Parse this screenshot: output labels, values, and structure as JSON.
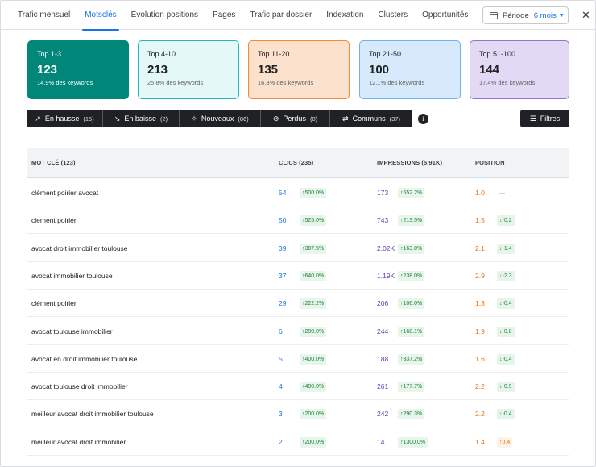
{
  "tabs": [
    {
      "label": "Trafic mensuel",
      "active": false
    },
    {
      "label": "Motsclés",
      "active": true
    },
    {
      "label": "Évolution positions",
      "active": false
    },
    {
      "label": "Pages",
      "active": false
    },
    {
      "label": "Trafic par dossier",
      "active": false
    },
    {
      "label": "Indexation",
      "active": false
    },
    {
      "label": "Clusters",
      "active": false
    },
    {
      "label": "Opportunités",
      "active": false
    }
  ],
  "period": {
    "label": "Période",
    "value": "6 mois"
  },
  "cards": [
    {
      "range": "Top 1-3",
      "count": "123",
      "pct": "14.9% des keywords"
    },
    {
      "range": "Top 4-10",
      "count": "213",
      "pct": "25.8% des keywords"
    },
    {
      "range": "Top 11-20",
      "count": "135",
      "pct": "16.3% des keywords"
    },
    {
      "range": "Top 21-50",
      "count": "100",
      "pct": "12.1% des keywords"
    },
    {
      "range": "Top 51-100",
      "count": "144",
      "pct": "17.4% des keywords"
    }
  ],
  "filters": [
    {
      "label": "En hausse",
      "count": "(15)",
      "icon": "trending-up-icon",
      "glyph": "↗"
    },
    {
      "label": "En baisse",
      "count": "(2)",
      "icon": "trending-down-icon",
      "glyph": "↘"
    },
    {
      "label": "Nouveaux",
      "count": "(86)",
      "icon": "sparkle-icon",
      "glyph": "✧"
    },
    {
      "label": "Perdus",
      "count": "(0)",
      "icon": "block-icon",
      "glyph": "⊘"
    },
    {
      "label": "Communs",
      "count": "(37)",
      "icon": "swap-icon",
      "glyph": "⇄"
    }
  ],
  "info_glyph": "i",
  "filtres_label": "Filtres",
  "table": {
    "headers": {
      "keyword": "MOT CLÉ (123)",
      "clics": "CLICS (235)",
      "impressions": "IMPRESSIONS (5.91K)",
      "position": "POSITION"
    },
    "rows": [
      {
        "keyword": "clément poirier avocat",
        "clics": "54",
        "clics_delta": "↑500.0%",
        "impr": "173",
        "impr_delta": "↑652.2%",
        "pos": "1.0",
        "pos_delta": "—",
        "pos_dir": "neu"
      },
      {
        "keyword": "clement poirier",
        "clics": "50",
        "clics_delta": "↑525.0%",
        "impr": "743",
        "impr_delta": "↑213.5%",
        "pos": "1.5",
        "pos_delta": "↓-0.2",
        "pos_dir": "down"
      },
      {
        "keyword": "avocat droit immobilier toulouse",
        "clics": "39",
        "clics_delta": "↑387.5%",
        "impr": "2.02K",
        "impr_delta": "↑163.0%",
        "pos": "2.1",
        "pos_delta": "↓-1.4",
        "pos_dir": "down"
      },
      {
        "keyword": "avocat immobilier toulouse",
        "clics": "37",
        "clics_delta": "↑640.0%",
        "impr": "1.19K",
        "impr_delta": "↑238.0%",
        "pos": "2.9",
        "pos_delta": "↓-2.3",
        "pos_dir": "down"
      },
      {
        "keyword": "clément poirier",
        "clics": "29",
        "clics_delta": "↑222.2%",
        "impr": "206",
        "impr_delta": "↑106.0%",
        "pos": "1.3",
        "pos_delta": "↓-0.4",
        "pos_dir": "down"
      },
      {
        "keyword": "avocat toulouse immobilier",
        "clics": "6",
        "clics_delta": "↑200.0%",
        "impr": "244",
        "impr_delta": "↑168.1%",
        "pos": "1.9",
        "pos_delta": "↓-0.8",
        "pos_dir": "down"
      },
      {
        "keyword": "avocat en droit immobilier toulouse",
        "clics": "5",
        "clics_delta": "↑400.0%",
        "impr": "188",
        "impr_delta": "↑337.2%",
        "pos": "1.6",
        "pos_delta": "↓-0.4",
        "pos_dir": "down"
      },
      {
        "keyword": "avocat toulouse droit immobilier",
        "clics": "4",
        "clics_delta": "↑400.0%",
        "impr": "261",
        "impr_delta": "↑177.7%",
        "pos": "2.2",
        "pos_delta": "↓-0.9",
        "pos_dir": "down"
      },
      {
        "keyword": "meilleur avocat droit immobilier toulouse",
        "clics": "3",
        "clics_delta": "↑200.0%",
        "impr": "242",
        "impr_delta": "↑290.3%",
        "pos": "2.2",
        "pos_delta": "↓-0.4",
        "pos_dir": "down"
      },
      {
        "keyword": "meilleur avocat droit immobilier",
        "clics": "2",
        "clics_delta": "↑200.0%",
        "impr": "14",
        "impr_delta": "↑1300.0%",
        "pos": "1.4",
        "pos_delta": "↑0.4",
        "pos_dir": "warn"
      }
    ]
  }
}
